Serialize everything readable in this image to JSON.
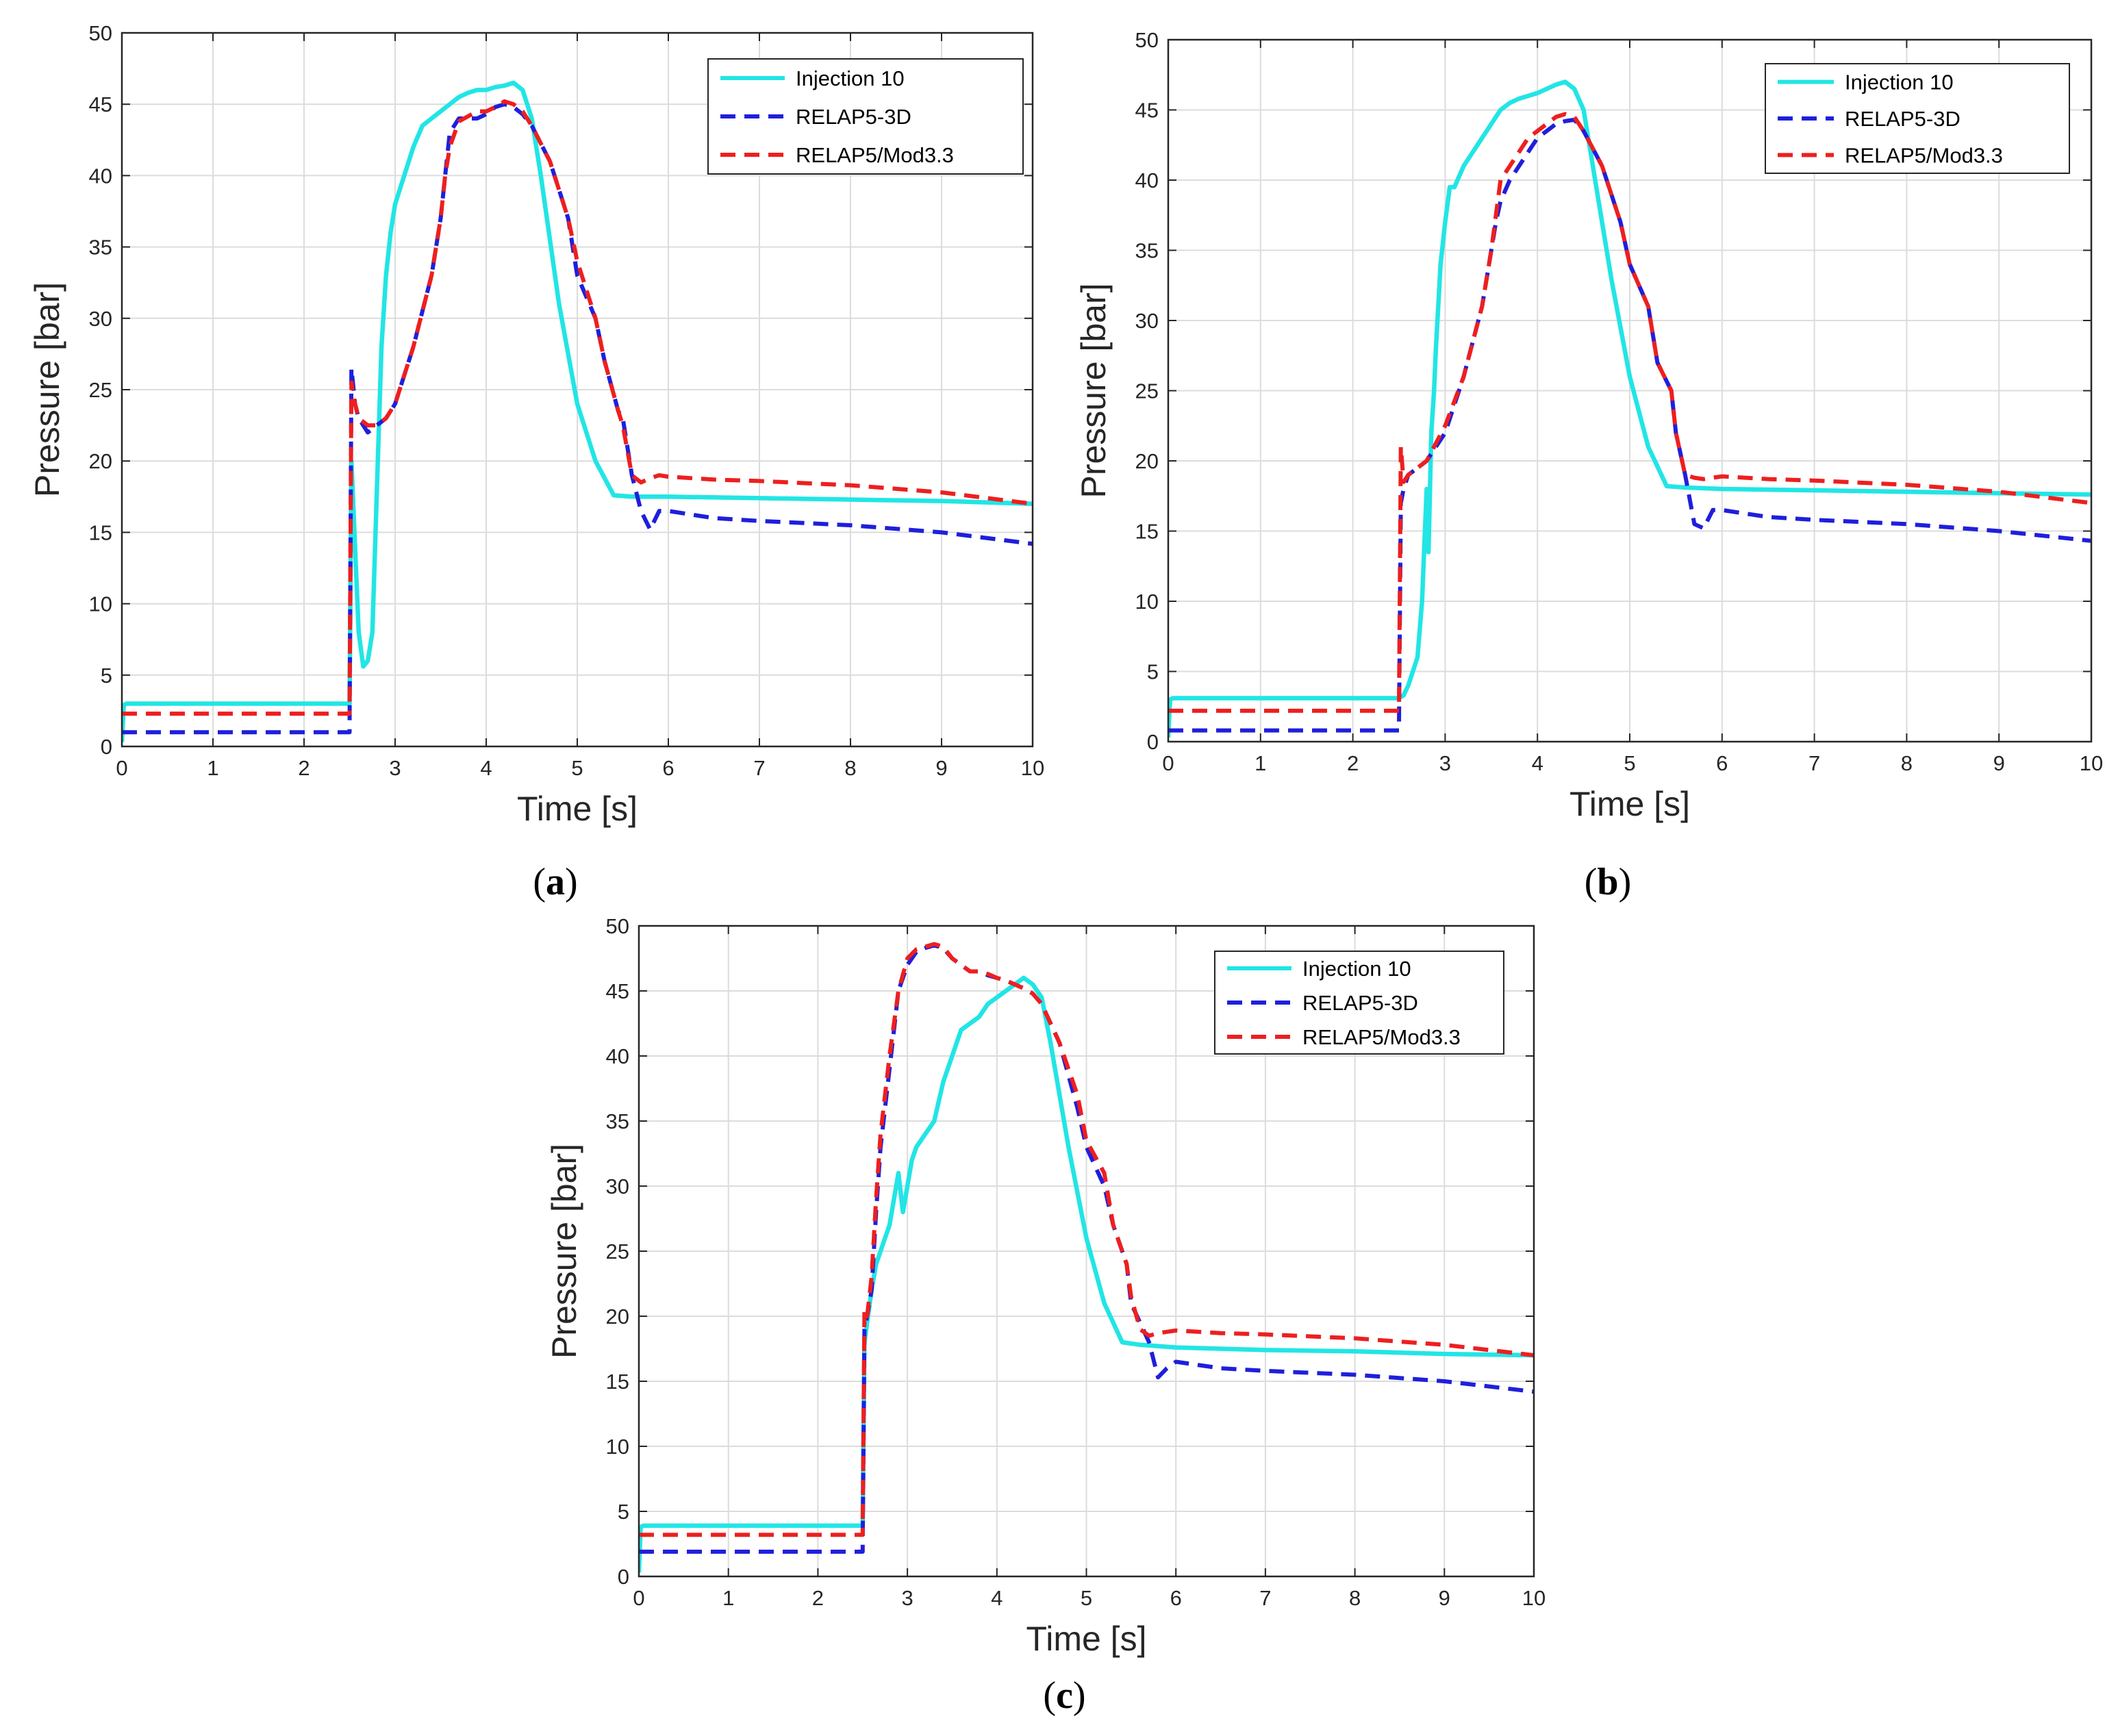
{
  "chart_data": [
    {
      "type": "line",
      "panel_label": "a",
      "xlabel": "Time [s]",
      "ylabel": "Pressure [bar]",
      "xlim": [
        0,
        10
      ],
      "ylim": [
        0,
        50
      ],
      "xticks": [
        0,
        1,
        2,
        3,
        4,
        5,
        6,
        7,
        8,
        9,
        10
      ],
      "yticks": [
        0,
        5,
        10,
        15,
        20,
        25,
        30,
        35,
        40,
        45,
        50
      ],
      "grid": true,
      "legend_position": "top-right",
      "series": [
        {
          "name": "Injection 10",
          "color": "#22e5e5",
          "style": "solid",
          "x": [
            0,
            0.02,
            0.05,
            2.5,
            2.52,
            2.56,
            2.6,
            2.65,
            2.7,
            2.75,
            2.8,
            2.85,
            2.9,
            2.95,
            3.0,
            3.1,
            3.2,
            3.3,
            3.4,
            3.5,
            3.6,
            3.7,
            3.8,
            3.9,
            4.0,
            4.1,
            4.2,
            4.3,
            4.4,
            4.5,
            4.6,
            4.8,
            5.0,
            5.2,
            5.4,
            5.6,
            6.0,
            7.0,
            8.0,
            9.0,
            10.0
          ],
          "y": [
            0.3,
            2.9,
            3.0,
            3.0,
            20,
            14,
            8,
            5.6,
            6,
            8,
            18,
            28,
            33,
            36,
            38,
            40,
            42,
            43.5,
            44,
            44.5,
            45,
            45.5,
            45.8,
            46,
            46,
            46.2,
            46.3,
            46.5,
            46,
            44,
            40,
            31,
            24,
            20,
            17.6,
            17.5,
            17.5,
            17.4,
            17.3,
            17.2,
            17.0
          ]
        },
        {
          "name": "RELAP5-3D",
          "color": "#1f1fdc",
          "style": "dashed",
          "x": [
            0,
            2.5,
            2.5,
            2.52,
            2.56,
            2.6,
            2.7,
            2.8,
            2.9,
            3.0,
            3.2,
            3.4,
            3.5,
            3.55,
            3.6,
            3.7,
            3.9,
            4.0,
            4.1,
            4.2,
            4.3,
            4.4,
            4.5,
            4.7,
            4.9,
            5.0,
            5.2,
            5.3,
            5.45,
            5.5,
            5.6,
            5.7,
            5.8,
            5.9,
            6.0,
            6.5,
            7.0,
            8.0,
            9.0,
            10.0
          ],
          "y": [
            1.0,
            1.0,
            1.5,
            26.5,
            24,
            23,
            22,
            22.5,
            23,
            24,
            28,
            33,
            37,
            40,
            43,
            44,
            44,
            44.3,
            44.8,
            45,
            44.8,
            44.3,
            43.5,
            41,
            37,
            33,
            30,
            27,
            23.5,
            23,
            19,
            16.5,
            15.2,
            16.5,
            16.5,
            16,
            15.8,
            15.5,
            15.0,
            14.2
          ]
        },
        {
          "name": "RELAP5/Mod3.3",
          "color": "#ee1f1f",
          "style": "dashed",
          "x": [
            0,
            2.5,
            2.5,
            2.52,
            2.56,
            2.6,
            2.7,
            2.8,
            2.9,
            3.0,
            3.2,
            3.4,
            3.5,
            3.55,
            3.6,
            3.7,
            3.9,
            4.0,
            4.1,
            4.2,
            4.3,
            4.4,
            4.5,
            4.7,
            4.9,
            5.0,
            5.2,
            5.3,
            5.45,
            5.5,
            5.6,
            5.7,
            5.8,
            5.9,
            6.0,
            6.5,
            7.0,
            8.0,
            9.0,
            10.0
          ],
          "y": [
            2.3,
            2.3,
            2.5,
            25.5,
            24,
            23,
            22.5,
            22.5,
            23,
            24,
            28,
            33,
            37,
            40,
            42,
            43.8,
            44.5,
            44.5,
            44.8,
            45.2,
            45.0,
            44.5,
            43.5,
            41,
            37,
            34,
            30,
            27,
            23.5,
            22.5,
            19,
            18.5,
            18.8,
            19,
            18.9,
            18.7,
            18.6,
            18.3,
            17.8,
            17.0
          ]
        }
      ]
    },
    {
      "type": "line",
      "panel_label": "b",
      "xlabel": "Time [s]",
      "ylabel": "Pressure [bar]",
      "xlim": [
        0,
        10
      ],
      "ylim": [
        0,
        50
      ],
      "xticks": [
        0,
        1,
        2,
        3,
        4,
        5,
        6,
        7,
        8,
        9,
        10
      ],
      "yticks": [
        0,
        5,
        10,
        15,
        20,
        25,
        30,
        35,
        40,
        45,
        50
      ],
      "grid": true,
      "legend_position": "top-right",
      "series": [
        {
          "name": "Injection 10",
          "color": "#22e5e5",
          "style": "solid",
          "x": [
            0,
            0.02,
            0.05,
            2.5,
            2.55,
            2.6,
            2.7,
            2.75,
            2.8,
            2.82,
            2.85,
            2.88,
            2.9,
            2.95,
            3.0,
            3.05,
            3.1,
            3.2,
            3.3,
            3.4,
            3.5,
            3.6,
            3.7,
            3.8,
            3.9,
            4.0,
            4.1,
            4.2,
            4.3,
            4.4,
            4.5,
            4.6,
            4.8,
            5.0,
            5.2,
            5.4,
            5.6,
            6.0,
            7.0,
            8.0,
            9.0,
            10.0
          ],
          "y": [
            0.3,
            3.0,
            3.1,
            3.1,
            3.3,
            4,
            6,
            10,
            18,
            13.5,
            22,
            25,
            28,
            34,
            37,
            39.5,
            39.5,
            41,
            42,
            43,
            44,
            45,
            45.5,
            45.8,
            46,
            46.2,
            46.5,
            46.8,
            47,
            46.5,
            45,
            41,
            33,
            26,
            21,
            18.2,
            18.1,
            18.0,
            17.9,
            17.8,
            17.7,
            17.6
          ]
        },
        {
          "name": "RELAP5-3D",
          "color": "#1f1fdc",
          "style": "dashed",
          "x": [
            0,
            2.5,
            2.5,
            2.52,
            2.55,
            2.6,
            2.7,
            2.8,
            3.0,
            3.2,
            3.4,
            3.5,
            3.55,
            3.6,
            3.7,
            3.9,
            4.0,
            4.1,
            4.2,
            4.3,
            4.4,
            4.5,
            4.7,
            4.9,
            5.0,
            5.2,
            5.3,
            5.45,
            5.5,
            5.6,
            5.7,
            5.8,
            5.9,
            6.0,
            6.5,
            7.0,
            8.0,
            9.0,
            10.0
          ],
          "y": [
            0.8,
            0.8,
            1.2,
            17,
            18,
            19,
            19.5,
            20,
            22,
            26,
            31,
            35,
            37,
            38.5,
            40,
            42,
            43,
            43.5,
            44,
            44.2,
            44.3,
            43.5,
            41,
            37,
            34,
            31,
            27,
            25,
            22,
            19,
            15.5,
            15.2,
            16.5,
            16.5,
            16.0,
            15.8,
            15.5,
            15.0,
            14.3
          ]
        },
        {
          "name": "RELAP5/Mod3.3",
          "color": "#ee1f1f",
          "style": "dashed",
          "x": [
            0,
            2.5,
            2.5,
            2.52,
            2.55,
            2.6,
            2.7,
            2.8,
            3.0,
            3.2,
            3.4,
            3.5,
            3.55,
            3.6,
            3.7,
            3.9,
            4.0,
            4.1,
            4.2,
            4.3,
            4.4,
            4.5,
            4.7,
            4.9,
            5.0,
            5.2,
            5.3,
            5.45,
            5.5,
            5.6,
            5.7,
            5.8,
            5.9,
            6.0,
            6.5,
            7.0,
            8.0,
            9.0,
            10.0
          ],
          "y": [
            2.2,
            2.2,
            2.5,
            21,
            18.5,
            19,
            19.5,
            20,
            22.5,
            26,
            31,
            35,
            37.5,
            40,
            41,
            43,
            43.5,
            44,
            44.5,
            44.7,
            44.5,
            43.5,
            41,
            37,
            34,
            31,
            27,
            25,
            22,
            19,
            18.8,
            18.7,
            18.8,
            18.9,
            18.7,
            18.6,
            18.3,
            17.8,
            17.0
          ]
        }
      ]
    },
    {
      "type": "line",
      "panel_label": "c",
      "xlabel": "Time [s]",
      "ylabel": "Pressure [bar]",
      "xlim": [
        0,
        10
      ],
      "ylim": [
        0,
        50
      ],
      "xticks": [
        0,
        1,
        2,
        3,
        4,
        5,
        6,
        7,
        8,
        9,
        10
      ],
      "yticks": [
        0,
        5,
        10,
        15,
        20,
        25,
        30,
        35,
        40,
        45,
        50
      ],
      "grid": true,
      "legend_position": "top-right",
      "series": [
        {
          "name": "Injection 10",
          "color": "#22e5e5",
          "style": "solid",
          "x": [
            0,
            0.02,
            0.05,
            2.5,
            2.52,
            2.56,
            2.6,
            2.65,
            2.7,
            2.75,
            2.8,
            2.85,
            2.9,
            2.95,
            3.0,
            3.05,
            3.1,
            3.2,
            3.3,
            3.4,
            3.5,
            3.6,
            3.7,
            3.8,
            3.9,
            4.0,
            4.1,
            4.2,
            4.3,
            4.4,
            4.5,
            4.6,
            4.8,
            5.0,
            5.2,
            5.4,
            5.6,
            6.0,
            7.0,
            8.0,
            9.0,
            10.0
          ],
          "y": [
            0.3,
            3.8,
            3.9,
            3.9,
            18,
            20,
            22,
            24,
            25,
            26,
            27,
            29,
            31,
            28,
            30,
            32,
            33,
            34,
            35,
            38,
            40,
            42,
            42.5,
            43,
            44,
            44.5,
            45,
            45.5,
            46,
            45.5,
            44.5,
            41,
            33,
            26,
            21,
            18,
            17.8,
            17.6,
            17.4,
            17.3,
            17.1,
            17.0
          ]
        },
        {
          "name": "RELAP5-3D",
          "color": "#1f1fdc",
          "style": "dashed",
          "x": [
            0,
            2.5,
            2.5,
            2.52,
            2.55,
            2.6,
            2.65,
            2.7,
            2.8,
            2.9,
            3.0,
            3.1,
            3.2,
            3.3,
            3.4,
            3.5,
            3.6,
            3.7,
            3.8,
            3.9,
            4.0,
            4.1,
            4.2,
            4.3,
            4.4,
            4.5,
            4.7,
            4.9,
            5.0,
            5.2,
            5.3,
            5.45,
            5.5,
            5.6,
            5.7,
            5.8,
            5.9,
            6.0,
            6.5,
            7.0,
            8.0,
            9.0,
            10.0
          ],
          "y": [
            1.9,
            1.9,
            2.5,
            19,
            20,
            22,
            28,
            33,
            39,
            45,
            47,
            48,
            48.3,
            48.5,
            48.3,
            47.5,
            47,
            46.5,
            46.5,
            46.2,
            46,
            45.8,
            45.5,
            45.2,
            44.8,
            44,
            41,
            36,
            33,
            30,
            27,
            24,
            21,
            19.5,
            18,
            15.3,
            16,
            16.5,
            16.0,
            15.8,
            15.5,
            15.0,
            14.2
          ]
        },
        {
          "name": "RELAP5/Mod3.3",
          "color": "#ee1f1f",
          "style": "dashed",
          "x": [
            0,
            2.5,
            2.5,
            2.52,
            2.55,
            2.6,
            2.65,
            2.7,
            2.8,
            2.9,
            3.0,
            3.1,
            3.2,
            3.3,
            3.4,
            3.5,
            3.6,
            3.7,
            3.8,
            3.9,
            4.0,
            4.1,
            4.2,
            4.3,
            4.4,
            4.5,
            4.7,
            4.9,
            5.0,
            5.2,
            5.3,
            5.45,
            5.5,
            5.6,
            5.7,
            5.8,
            5.9,
            6.0,
            6.5,
            7.0,
            8.0,
            9.0,
            10.0
          ],
          "y": [
            3.2,
            3.2,
            3.5,
            20.5,
            20,
            23,
            29,
            34,
            40,
            45,
            47.5,
            48.2,
            48.4,
            48.6,
            48.4,
            47.5,
            47,
            46.5,
            46.5,
            46.3,
            46,
            45.8,
            45.5,
            45.2,
            44.8,
            44,
            41,
            37,
            33.5,
            31,
            27,
            24,
            21.5,
            19,
            18.5,
            18.7,
            18.8,
            18.9,
            18.7,
            18.6,
            18.3,
            17.8,
            17.0
          ]
        }
      ]
    }
  ]
}
